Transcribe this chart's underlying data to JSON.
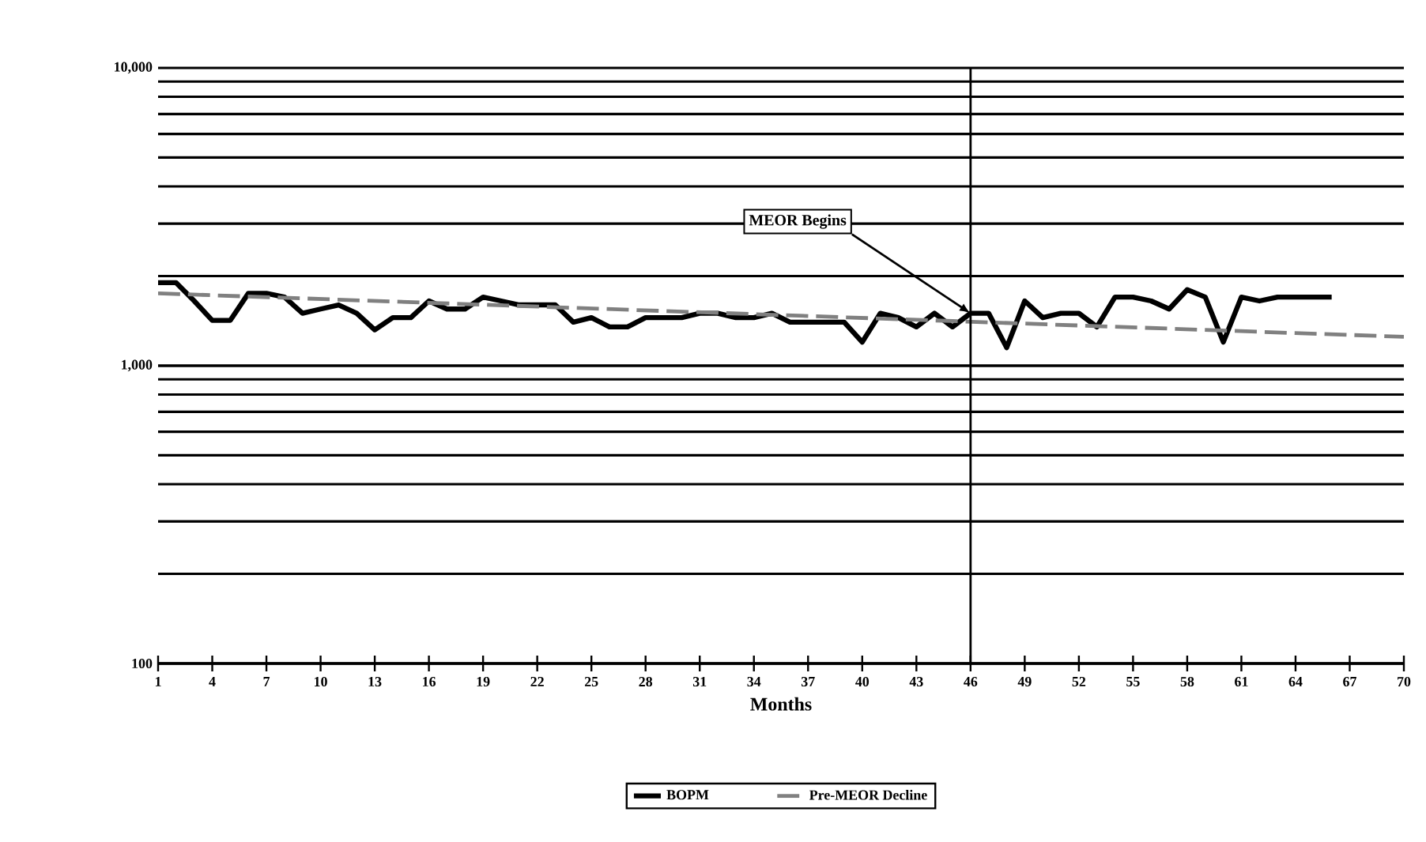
{
  "chart_data": {
    "type": "line",
    "xlabel": "Months",
    "xlim": [
      1,
      70
    ],
    "xticks": [
      1,
      4,
      7,
      10,
      13,
      16,
      19,
      22,
      25,
      28,
      31,
      34,
      37,
      40,
      43,
      46,
      49,
      52,
      55,
      58,
      61,
      64,
      67,
      70
    ],
    "ylim": [
      100,
      10000
    ],
    "yticks": [
      {
        "value": 100,
        "label": "100"
      },
      {
        "value": 1000,
        "label": "1,000"
      },
      {
        "value": 10000,
        "label": "10,000"
      }
    ],
    "log": "y",
    "grid": "y",
    "legend": "bottom",
    "marker": "none",
    "series": [
      {
        "name": "BOPM",
        "color": "#000000",
        "line_style": "solid",
        "x": [
          1,
          2,
          3,
          4,
          5,
          6,
          7,
          8,
          9,
          10,
          11,
          12,
          13,
          14,
          15,
          16,
          17,
          18,
          19,
          20,
          21,
          22,
          23,
          24,
          25,
          26,
          27,
          28,
          29,
          30,
          31,
          32,
          33,
          34,
          35,
          36,
          37,
          38,
          39,
          40,
          41,
          42,
          43,
          44,
          45,
          46,
          47,
          48,
          49,
          50,
          51,
          52,
          53,
          54,
          55,
          56,
          57,
          58,
          59,
          60,
          61,
          62,
          63,
          64,
          65,
          66
        ],
        "values": [
          1900,
          1900,
          1650,
          1420,
          1420,
          1750,
          1750,
          1700,
          1500,
          1550,
          1600,
          1500,
          1320,
          1450,
          1450,
          1650,
          1550,
          1550,
          1700,
          1650,
          1600,
          1600,
          1600,
          1400,
          1450,
          1350,
          1350,
          1450,
          1450,
          1450,
          1500,
          1500,
          1450,
          1450,
          1500,
          1400,
          1400,
          1400,
          1400,
          1200,
          1500,
          1450,
          1350,
          1500,
          1350,
          1500,
          1500,
          1150,
          1650,
          1450,
          1500,
          1500,
          1350,
          1700,
          1700,
          1650,
          1550,
          1800,
          1700,
          1200,
          1700,
          1650,
          1700,
          1700,
          1700,
          1700
        ]
      },
      {
        "name": "Pre-MEOR Decline",
        "color": "#808080",
        "line_style": "dashed",
        "x": [
          1,
          70
        ],
        "values": [
          1750,
          1250
        ]
      }
    ],
    "ref_lines": [
      {
        "axis": "x",
        "value": 46,
        "color": "#000000",
        "line_style": "solid"
      }
    ],
    "annotations": [
      {
        "text": "MEOR Begins",
        "x": 46,
        "y": 1500
      }
    ]
  }
}
